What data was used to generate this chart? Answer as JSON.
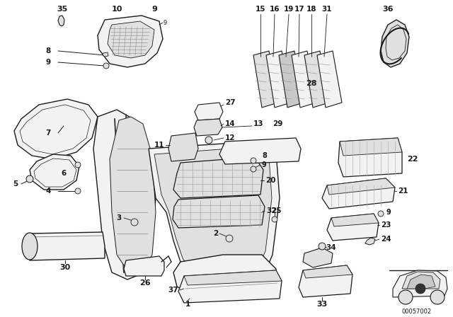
{
  "bg_color": "#ffffff",
  "fig_width": 6.4,
  "fig_height": 4.48,
  "watermark": "00057002",
  "line_color": "#1a1a1a",
  "fill_light": "#f2f2f2",
  "fill_mid": "#e0e0e0",
  "fill_dark": "#c8c8c8"
}
